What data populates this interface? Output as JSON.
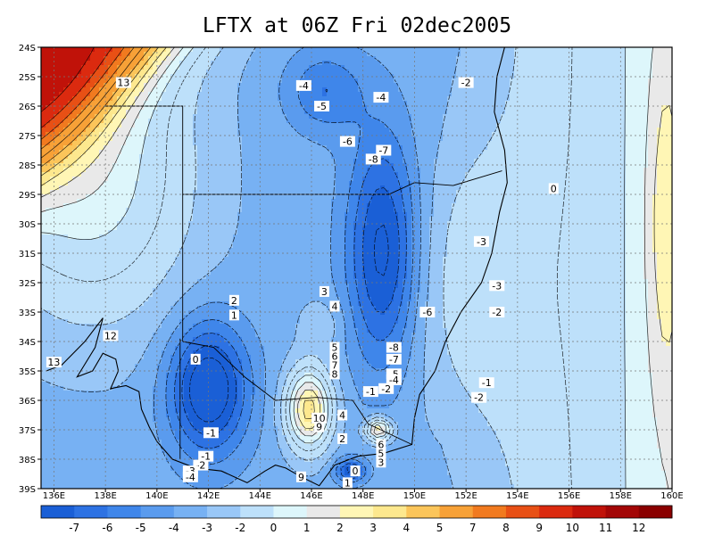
{
  "title": "LFTX at 06Z Fri 02dec2005",
  "map": {
    "lon_range": [
      135.5,
      160
    ],
    "lat_range": [
      -39,
      -24
    ],
    "lon_ticks": [
      "136E",
      "138E",
      "140E",
      "142E",
      "144E",
      "146E",
      "148E",
      "150E",
      "152E",
      "154E",
      "156E",
      "158E",
      "160E"
    ],
    "lat_ticks": [
      "24S",
      "25S",
      "26S",
      "27S",
      "28S",
      "29S",
      "30S",
      "31S",
      "32S",
      "33S",
      "34S",
      "35S",
      "36S",
      "37S",
      "38S",
      "39S"
    ],
    "contour_labels": [
      {
        "text": "13",
        "lon": 138.7,
        "lat": -25.2
      },
      {
        "text": "13",
        "lon": 136.0,
        "lat": -34.7
      },
      {
        "text": "12",
        "lon": 138.2,
        "lat": -33.8
      },
      {
        "text": "-4",
        "lon": 145.7,
        "lat": -25.3
      },
      {
        "text": "-5",
        "lon": 146.4,
        "lat": -26.0
      },
      {
        "text": "-4",
        "lon": 148.7,
        "lat": -25.7
      },
      {
        "text": "-2",
        "lon": 152.0,
        "lat": -25.2
      },
      {
        "text": "-6",
        "lon": 147.4,
        "lat": -27.2
      },
      {
        "text": "-7",
        "lon": 148.8,
        "lat": -27.5
      },
      {
        "text": "-8",
        "lon": 148.4,
        "lat": -27.8
      },
      {
        "text": "0",
        "lon": 155.4,
        "lat": -28.8
      },
      {
        "text": "-3",
        "lon": 152.6,
        "lat": -30.6
      },
      {
        "text": "-3",
        "lon": 153.2,
        "lat": -32.1
      },
      {
        "text": "-2",
        "lon": 153.2,
        "lat": -33.0
      },
      {
        "text": "-6",
        "lon": 150.5,
        "lat": -33.0
      },
      {
        "text": "3",
        "lon": 146.5,
        "lat": -32.3
      },
      {
        "text": "4",
        "lon": 146.9,
        "lat": -32.8
      },
      {
        "text": "2",
        "lon": 143.0,
        "lat": -32.6
      },
      {
        "text": "1",
        "lon": 143.0,
        "lat": -33.1
      },
      {
        "text": "0",
        "lon": 141.5,
        "lat": -34.6
      },
      {
        "text": "-8",
        "lon": 149.2,
        "lat": -34.2
      },
      {
        "text": "-7",
        "lon": 149.2,
        "lat": -34.6
      },
      {
        "text": "5",
        "lon": 146.9,
        "lat": -34.2
      },
      {
        "text": "6",
        "lon": 146.9,
        "lat": -34.5
      },
      {
        "text": "7",
        "lon": 146.9,
        "lat": -34.8
      },
      {
        "text": "8",
        "lon": 146.9,
        "lat": -35.1
      },
      {
        "text": "-5",
        "lon": 149.2,
        "lat": -35.1
      },
      {
        "text": "-4",
        "lon": 149.2,
        "lat": -35.3
      },
      {
        "text": "-2",
        "lon": 148.9,
        "lat": -35.6
      },
      {
        "text": "-1",
        "lon": 148.3,
        "lat": -35.7
      },
      {
        "text": "-1",
        "lon": 152.8,
        "lat": -35.4
      },
      {
        "text": "-2",
        "lon": 152.5,
        "lat": -35.9
      },
      {
        "text": "10",
        "lon": 146.3,
        "lat": -36.6
      },
      {
        "text": "9",
        "lon": 146.3,
        "lat": -36.9
      },
      {
        "text": "4",
        "lon": 147.2,
        "lat": -36.5
      },
      {
        "text": "-1",
        "lon": 142.1,
        "lat": -37.1
      },
      {
        "text": "2",
        "lon": 147.2,
        "lat": -37.3
      },
      {
        "text": "6",
        "lon": 148.7,
        "lat": -37.5
      },
      {
        "text": "5",
        "lon": 148.7,
        "lat": -37.8
      },
      {
        "text": "3",
        "lon": 148.7,
        "lat": -38.1
      },
      {
        "text": "-1",
        "lon": 141.9,
        "lat": -37.9
      },
      {
        "text": "-2",
        "lon": 141.7,
        "lat": -38.2
      },
      {
        "text": "-3",
        "lon": 141.3,
        "lat": -38.4
      },
      {
        "text": "-4",
        "lon": 141.3,
        "lat": -38.6
      },
      {
        "text": "9",
        "lon": 145.6,
        "lat": -38.6
      },
      {
        "text": "0",
        "lon": 147.7,
        "lat": -38.4
      },
      {
        "text": "1",
        "lon": 147.4,
        "lat": -38.8
      }
    ]
  },
  "colorbar": {
    "labels": [
      "-7",
      "-6",
      "-5",
      "-4",
      "-3",
      "-2",
      "0",
      "1",
      "2",
      "3",
      "4",
      "5",
      "7",
      "8",
      "9",
      "10",
      "11",
      "12"
    ],
    "colors": [
      "#1a5fd6",
      "#2d72e3",
      "#3f86ea",
      "#5a9bee",
      "#77b1f3",
      "#99c7f7",
      "#bde0fa",
      "#ddf6fb",
      "#e9e9e9",
      "#fff6b5",
      "#fde88e",
      "#fbc55a",
      "#f7a137",
      "#f17a1f",
      "#e85015",
      "#db2a0f",
      "#c01209",
      "#a30606",
      "#8a0000"
    ]
  },
  "chart_data": {
    "type": "heatmap",
    "title": "LFTX at 06Z Fri 02dec2005",
    "xlabel": "",
    "ylabel": "",
    "xlim": [
      135.5,
      160
    ],
    "ylim": [
      -39,
      -24
    ],
    "color_scale_levels": [
      -7,
      -6,
      -5,
      -4,
      -3,
      -2,
      0,
      1,
      2,
      3,
      4,
      5,
      7,
      8,
      9,
      10,
      11,
      12
    ],
    "grid": true,
    "legend": "bottom"
  }
}
